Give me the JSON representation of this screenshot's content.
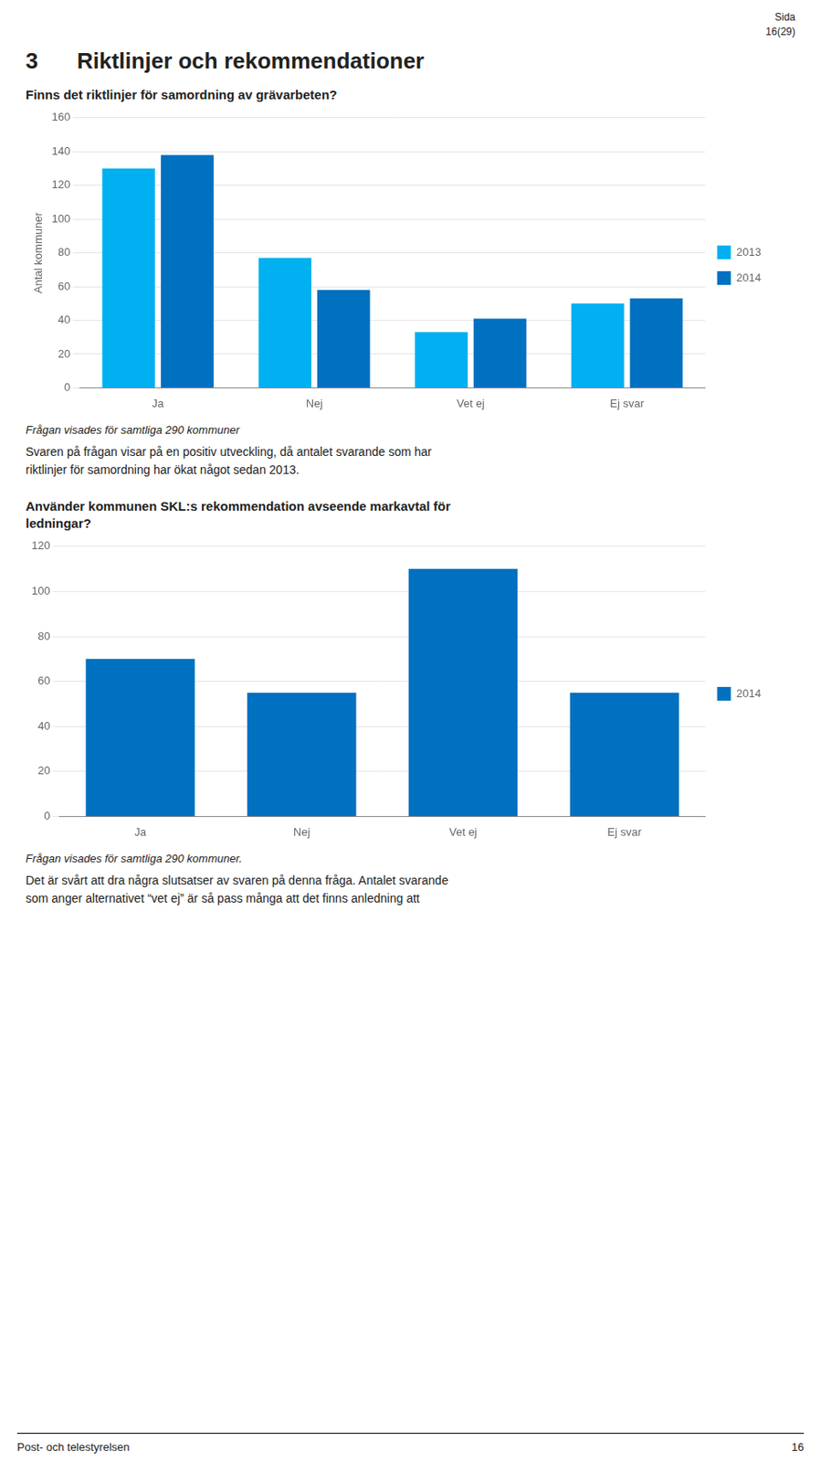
{
  "page_header": [
    "Sida",
    "16(29)"
  ],
  "section_number": "3",
  "section_title": "Riktlinjer och rekommendationer",
  "chart_data": [
    {
      "type": "bar",
      "title": [
        "Finns det riktlinjer för samordning av grävarbeten?"
      ],
      "categories": [
        "Ja",
        "Nej",
        "Vet ej",
        "Ej svar"
      ],
      "series": [
        {
          "name": "2013",
          "color": "#00B0F0",
          "values": [
            130,
            77,
            33,
            50
          ]
        },
        {
          "name": "2014",
          "color": "#0070C0",
          "values": [
            138,
            58,
            41,
            53
          ]
        }
      ],
      "ylabel": "Antal kommuner",
      "ylim": [
        0,
        160
      ],
      "yticks": [
        0,
        20,
        40,
        60,
        80,
        100,
        120,
        140,
        160
      ],
      "grid": true,
      "legend": "right",
      "annotations": [
        "Frågan visades för samtliga 290 kommuner",
        "Svaren på frågan visar på en positiv utveckling, då antalet svarande som har",
        "riktlinjer för samordning har ökat något sedan 2013."
      ]
    },
    {
      "type": "bar",
      "title": [
        "Använder kommunen SKL:s rekommendation avseende markavtal för",
        "ledningar?"
      ],
      "categories": [
        "Ja",
        "Nej",
        "Vet ej",
        "Ej svar"
      ],
      "series": [
        {
          "name": "2014",
          "color": "#0070C0",
          "values": [
            70,
            55,
            110,
            55
          ]
        }
      ],
      "ylim": [
        0,
        120
      ],
      "yticks": [
        0,
        20,
        40,
        60,
        80,
        100,
        120
      ],
      "grid": true,
      "legend": "right",
      "annotations": [
        "Frågan visades för samtliga 290 kommuner.",
        "Det är svårt att dra några slutsatser av svaren på denna fråga. Antalet svarande",
        "som anger alternativet “vet ej” är så pass många att det finns anledning att"
      ]
    }
  ],
  "footer_left": "Post- och telestyrelsen",
  "footer_right": "16"
}
